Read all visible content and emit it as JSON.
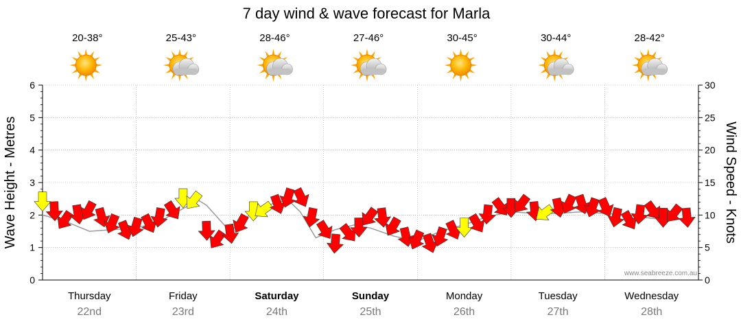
{
  "title": "7 day wind & wave forecast for Marla",
  "credit": "www.seabreeze.com.au",
  "colors": {
    "wind_normal": "#ff0000",
    "wind_highlight": "#ffff00",
    "wave_line": "#999999",
    "grid": "#999999"
  },
  "chart_data": {
    "type": "line",
    "title": "7 day wind & wave forecast for Marla",
    "ylabel_left": "Wave Height - Metres",
    "ylabel_right": "Wind Speed - Knots",
    "ylim_left": [
      0,
      6
    ],
    "ylim_right": [
      0,
      30
    ],
    "yticks_left": [
      "0",
      "1",
      "2",
      "3",
      "4",
      "5",
      "6"
    ],
    "yticks_right": [
      "0",
      "5",
      "10",
      "15",
      "20",
      "25",
      "30"
    ],
    "grid": true,
    "days": [
      {
        "name": "Thursday",
        "date": "22nd",
        "temp": "20-38°",
        "weather": "sunny-icon",
        "bold": false
      },
      {
        "name": "Friday",
        "date": "23rd",
        "temp": "25-43°",
        "weather": "partly-cloudy-icon",
        "bold": false
      },
      {
        "name": "Saturday",
        "date": "24th",
        "temp": "28-46°",
        "weather": "partly-cloudy-icon",
        "bold": true
      },
      {
        "name": "Sunday",
        "date": "25th",
        "temp": "27-46°",
        "weather": "partly-cloudy-icon",
        "bold": true
      },
      {
        "name": "Monday",
        "date": "26th",
        "temp": "30-45°",
        "weather": "sunny-icon",
        "bold": false
      },
      {
        "name": "Tuesday",
        "date": "27th",
        "temp": "30-44°",
        "weather": "partly-cloudy-icon",
        "bold": false
      },
      {
        "name": "Wednesday",
        "date": "28th",
        "temp": "28-42°",
        "weather": "partly-cloudy-icon",
        "bold": false
      }
    ],
    "series": [
      {
        "type": "wind_arrows",
        "x_hours": [
          0,
          3,
          6,
          9,
          12,
          15,
          18,
          21,
          24,
          27,
          30,
          33,
          36,
          39,
          42,
          45,
          48,
          51,
          54,
          57,
          60,
          63,
          66,
          69,
          72,
          75,
          78,
          81,
          84,
          87,
          90,
          93,
          96,
          99,
          102,
          105,
          108,
          111,
          114,
          117,
          120,
          123,
          126,
          129,
          132,
          135,
          138,
          141,
          144,
          147,
          150,
          153,
          156,
          159,
          162,
          165
        ],
        "values": [
          12.5,
          11,
          9.5,
          10.5,
          11,
          10,
          9,
          8,
          8.5,
          9,
          10,
          11,
          13,
          12.5,
          8,
          6.5,
          7.5,
          9,
          11,
          11,
          12,
          13,
          13,
          10,
          8,
          6,
          7.5,
          8.5,
          10,
          10,
          8.5,
          7,
          6.5,
          6,
          7,
          8,
          8.5,
          9,
          10.5,
          11.5,
          11.5,
          12,
          11,
          10.5,
          11.5,
          12,
          12,
          11.5,
          11.5,
          10,
          9.5,
          10.5,
          11,
          10,
          10.5,
          10
        ],
        "highlight": [
          true,
          false,
          false,
          false,
          false,
          false,
          false,
          false,
          false,
          false,
          false,
          false,
          true,
          true,
          false,
          false,
          false,
          false,
          true,
          true,
          false,
          false,
          false,
          false,
          false,
          false,
          false,
          false,
          false,
          false,
          false,
          false,
          false,
          false,
          false,
          false,
          true,
          false,
          false,
          false,
          false,
          false,
          false,
          true,
          false,
          false,
          false,
          false,
          false,
          false,
          false,
          false,
          false,
          false,
          false,
          false
        ]
      },
      {
        "type": "wave_line",
        "x_hours": [
          0,
          6,
          12,
          18,
          24,
          30,
          36,
          40,
          42,
          48,
          54,
          60,
          63,
          66,
          70,
          75,
          80,
          84,
          90,
          96,
          102,
          108,
          114,
          120,
          126,
          132,
          138,
          144,
          150,
          156,
          162,
          165
        ],
        "values": [
          2.0,
          1.8,
          1.5,
          1.55,
          1.6,
          1.8,
          2.2,
          2.45,
          2.3,
          1.5,
          2.1,
          2.4,
          2.45,
          2.1,
          1.3,
          1.55,
          1.7,
          1.6,
          1.35,
          1.2,
          1.5,
          1.7,
          1.95,
          2.1,
          2.05,
          2.05,
          2.1,
          2.05,
          2.0,
          1.9,
          1.85,
          1.9
        ]
      }
    ]
  }
}
